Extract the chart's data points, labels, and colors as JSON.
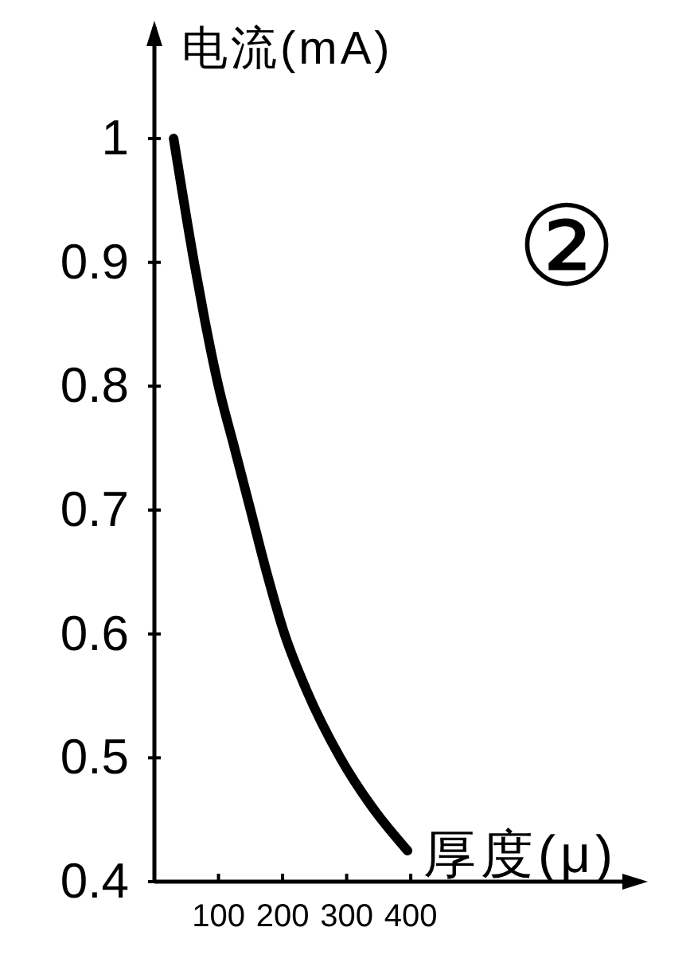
{
  "chart_data": {
    "type": "line",
    "xlabel": "厚度(μ)",
    "ylabel": "电流(mA)",
    "annotations": [
      "②"
    ],
    "x": [
      30,
      62,
      78,
      100,
      125,
      150,
      175,
      203,
      237,
      290,
      340,
      395
    ],
    "series": [
      {
        "color": "#000000",
        "values": [
          1.0,
          0.9,
          0.855,
          0.8,
          0.75,
          0.7,
          0.65,
          0.6,
          0.555,
          0.5,
          0.46,
          0.425
        ]
      }
    ],
    "xlim": [
      0,
      760
    ],
    "ylim": [
      0.4,
      1.09
    ],
    "xticks": [
      100,
      200,
      300,
      400
    ],
    "yticks": [
      0.4,
      0.5,
      0.6,
      0.7,
      0.8,
      0.9,
      1
    ],
    "line_style": "solid"
  }
}
